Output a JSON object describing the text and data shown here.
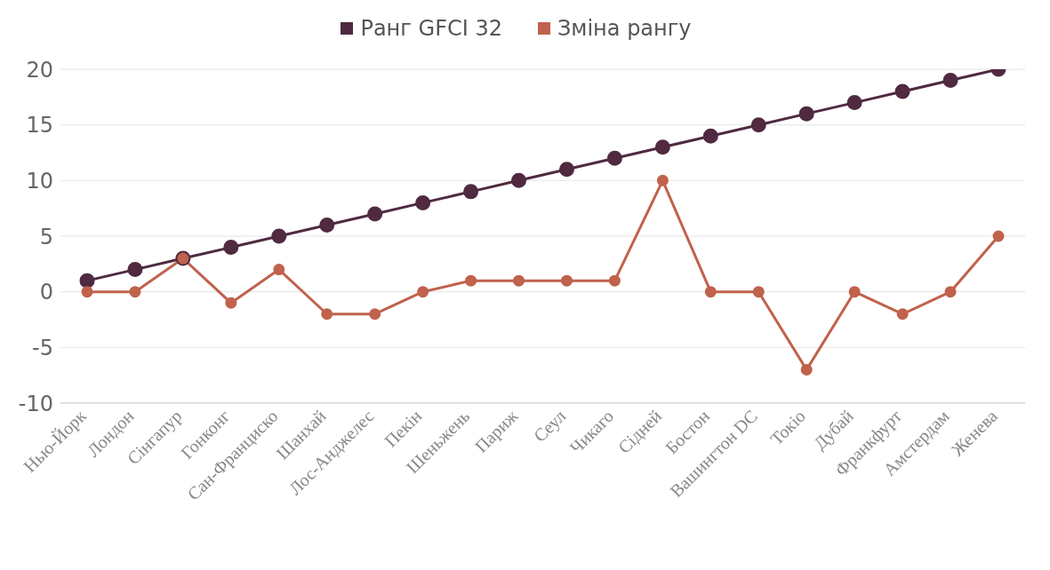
{
  "chart_data": {
    "type": "line",
    "categories": [
      "Нью-Йорк",
      "Лондон",
      "Сінгапур",
      "Гонконг",
      "Сан-Франциско",
      "Шанхай",
      "Лос-Анджелес",
      "Пекін",
      "Шеньжень",
      "Париж",
      "Сеул",
      "Чикаго",
      "Сідней",
      "Бостон",
      "Вашингтон DC",
      "Токіо",
      "Дубай",
      "Франкфурт",
      "Амстердам",
      "Женева"
    ],
    "series": [
      {
        "name": "Ранг GFCI 32",
        "color": "#4f2a40",
        "values": [
          1,
          2,
          3,
          4,
          5,
          6,
          7,
          8,
          9,
          10,
          11,
          12,
          13,
          14,
          15,
          16,
          17,
          18,
          19,
          20
        ]
      },
      {
        "name": "Зміна рангу",
        "color": "#c0624c",
        "values": [
          0,
          0,
          3,
          -1,
          2,
          -2,
          -2,
          0,
          1,
          1,
          1,
          1,
          10,
          0,
          0,
          -7,
          0,
          -2,
          0,
          5
        ]
      }
    ],
    "ylim": [
      -10,
      20
    ],
    "yticks": [
      -10,
      -5,
      0,
      5,
      10,
      15,
      20
    ],
    "grid": "y",
    "legend": "top",
    "marker": "circle",
    "line_style": "solid"
  }
}
